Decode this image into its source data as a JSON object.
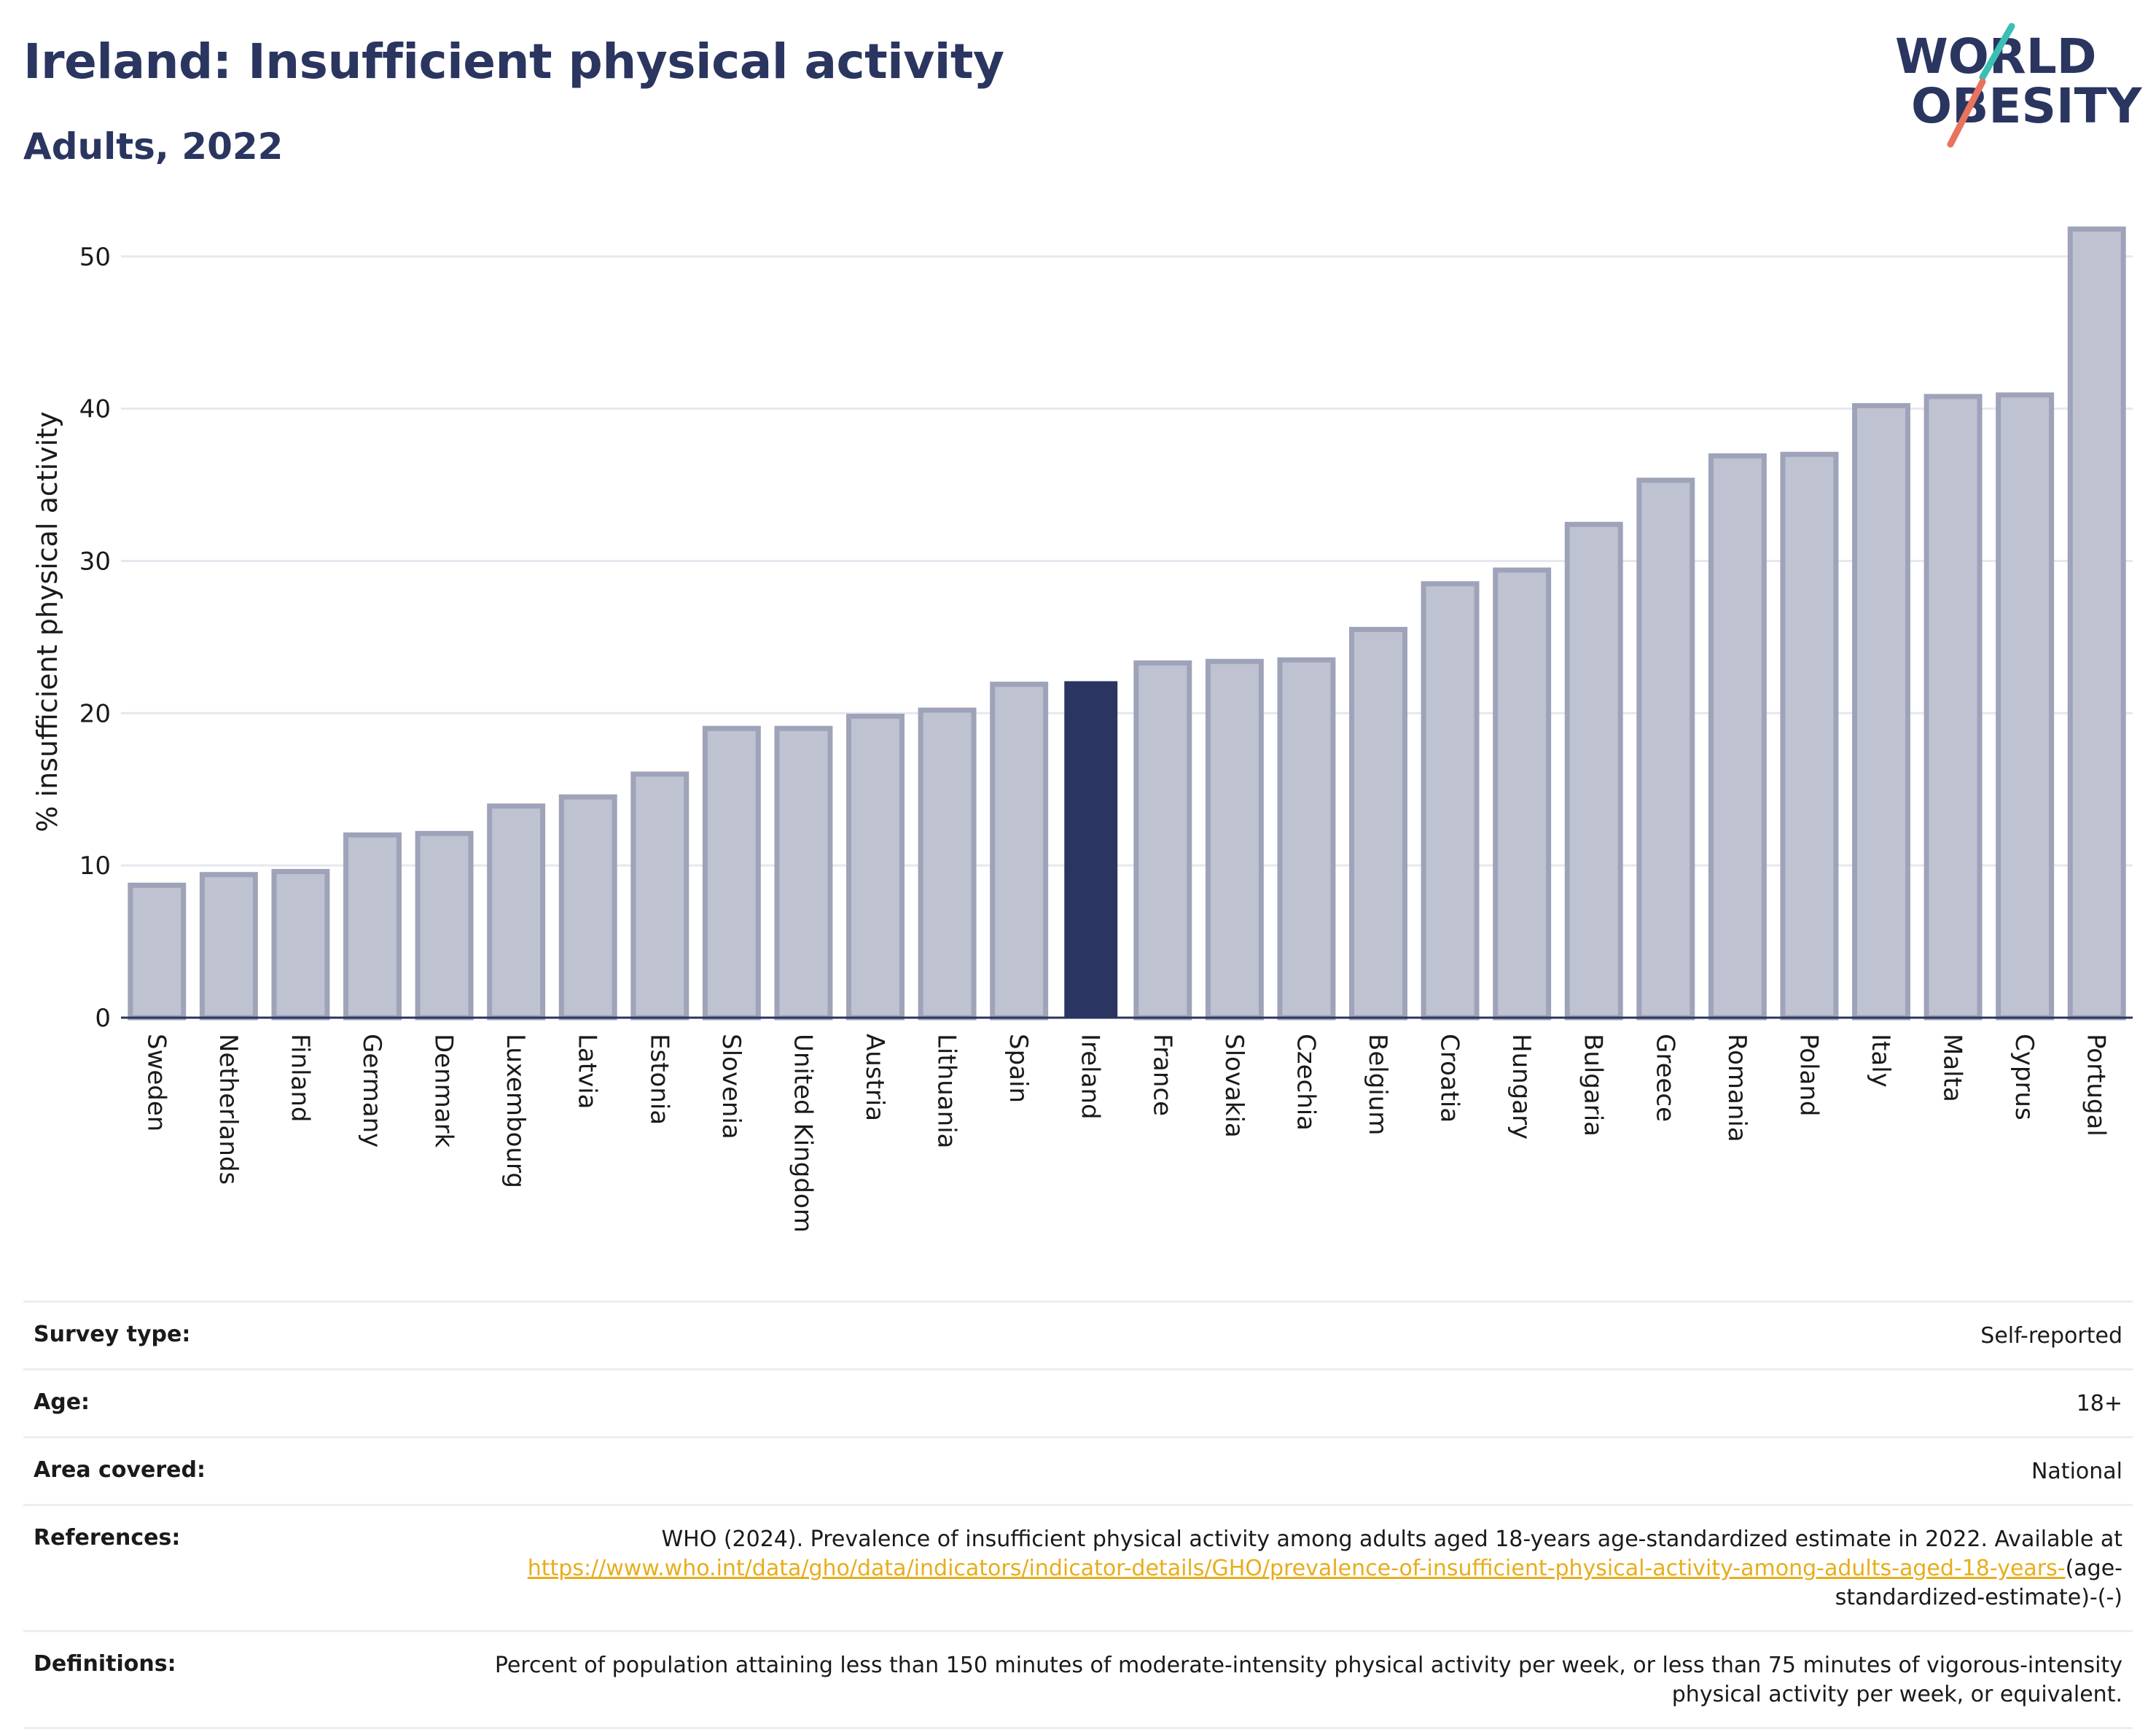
{
  "header": {
    "title": "Ireland: Insufficient physical activity",
    "subtitle": "Adults, 2022",
    "logo_line1": "WORLD",
    "logo_line2": "OBESITY"
  },
  "colors": {
    "title": "#2a3560",
    "bar_default": "#bfc2d0",
    "bar_default_stroke": "#9ea3b9",
    "bar_highlight": "#2b3561",
    "link": "#e8ad1c",
    "logo_teal": "#3bbfb4",
    "logo_coral": "#e8735e"
  },
  "chart_data": {
    "type": "bar",
    "title": "Ireland: Insufficient physical activity",
    "subtitle": "Adults, 2022",
    "ylabel": "% insufficient physical activity",
    "xlabel": "",
    "ylim": [
      0,
      52
    ],
    "yticks": [
      0,
      10,
      20,
      30,
      40,
      50
    ],
    "grid": true,
    "highlight": "Ireland",
    "categories": [
      "Sweden",
      "Netherlands",
      "Finland",
      "Germany",
      "Denmark",
      "Luxembourg",
      "Latvia",
      "Estonia",
      "Slovenia",
      "United Kingdom",
      "Austria",
      "Lithuania",
      "Spain",
      "Ireland",
      "France",
      "Slovakia",
      "Czechia",
      "Belgium",
      "Croatia",
      "Hungary",
      "Bulgaria",
      "Greece",
      "Romania",
      "Poland",
      "Italy",
      "Malta",
      "Cyprus",
      "Portugal"
    ],
    "values": [
      8.7,
      9.4,
      9.6,
      12.0,
      12.1,
      13.9,
      14.5,
      16.0,
      19.0,
      19.0,
      19.8,
      20.2,
      21.9,
      22.1,
      23.3,
      23.4,
      23.5,
      25.5,
      28.5,
      29.4,
      32.4,
      35.3,
      36.9,
      37.0,
      40.2,
      40.8,
      40.9,
      51.8
    ]
  },
  "meta": {
    "survey_type_label": "Survey type:",
    "survey_type_value": "Self-reported",
    "age_label": "Age:",
    "age_value": "18+",
    "area_label": "Area covered:",
    "area_value": "National",
    "references_label": "References:",
    "references_text": "WHO (2024). Prevalence of insufficient physical activity among adults aged 18-years age-standardized estimate in 2022. Available at",
    "references_link": "https://www.who.int/data/gho/data/indicators/indicator-details/GHO/prevalence-of-insufficient-physical-activity-among-adults-aged-18-years-",
    "references_suffix": "(age-standardized-estimate)-(-)",
    "definitions_label": "Definitions:",
    "definitions_value": "Percent of population attaining less than 150 minutes of moderate-intensity physical activity per week, or less than 75 minutes of vigorous-intensity physical activity per week, or equivalent."
  }
}
